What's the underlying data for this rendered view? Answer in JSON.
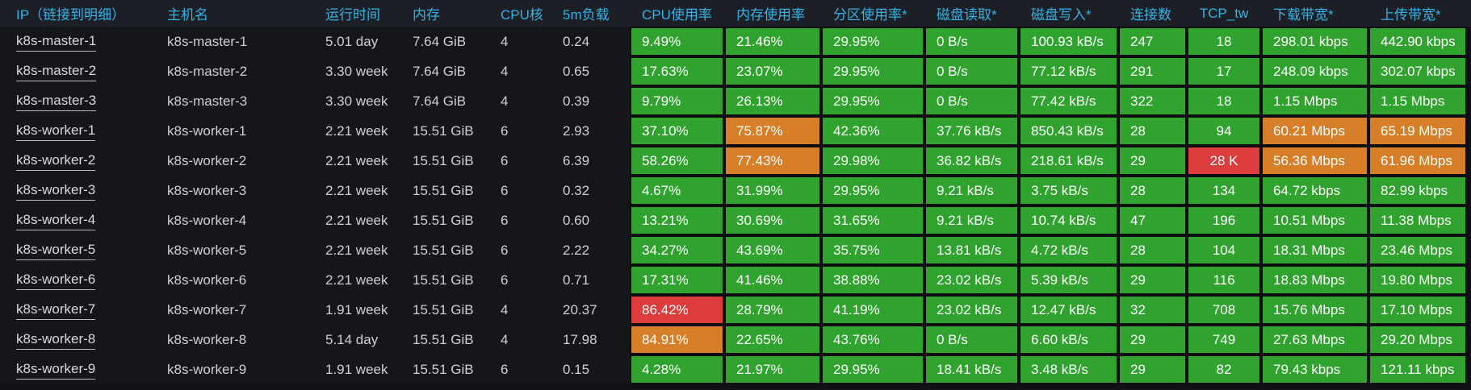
{
  "colors": {
    "green": "#30a32e",
    "orange": "#d67e28",
    "red": "#dc3c3c",
    "header_text": "#35b2e5",
    "body_text": "#cfd0d2",
    "metric_text": "#ffffff"
  },
  "table": {
    "default_level": "green",
    "columns": [
      {
        "key": "ip",
        "label": "IP（链接到明细）",
        "type": "link"
      },
      {
        "key": "hostname",
        "label": "主机名",
        "type": "text"
      },
      {
        "key": "uptime",
        "label": "运行时间",
        "type": "text"
      },
      {
        "key": "memory",
        "label": "内存",
        "type": "text"
      },
      {
        "key": "cores",
        "label": "CPU核",
        "type": "text"
      },
      {
        "key": "load",
        "label": "5m负载",
        "type": "text"
      },
      {
        "key": "cpu_pct",
        "label": "CPU使用率",
        "type": "metric"
      },
      {
        "key": "mem_pct",
        "label": "内存使用率",
        "type": "metric"
      },
      {
        "key": "part_pct",
        "label": "分区使用率*",
        "type": "metric"
      },
      {
        "key": "disk_read",
        "label": "磁盘读取*",
        "type": "metric"
      },
      {
        "key": "disk_write",
        "label": "磁盘写入*",
        "type": "metric"
      },
      {
        "key": "conns",
        "label": "连接数",
        "type": "metric"
      },
      {
        "key": "tcp_tw",
        "label": "TCP_tw",
        "type": "metric"
      },
      {
        "key": "down_bw",
        "label": "下载带宽*",
        "type": "metric"
      },
      {
        "key": "up_bw",
        "label": "上传带宽*",
        "type": "metric"
      }
    ],
    "rows": [
      {
        "cells": [
          "k8s-master-1",
          "k8s-master-1",
          "5.01 day",
          "7.64 GiB",
          "4",
          "0.24",
          "9.49%",
          "21.46%",
          "29.95%",
          "0 B/s",
          "100.93 kB/s",
          "247",
          "18",
          "298.01 kbps",
          "442.90 kbps"
        ],
        "cell_colors": {}
      },
      {
        "cells": [
          "k8s-master-2",
          "k8s-master-2",
          "3.30 week",
          "7.64 GiB",
          "4",
          "0.65",
          "17.63%",
          "23.07%",
          "29.95%",
          "0 B/s",
          "77.12 kB/s",
          "291",
          "17",
          "248.09 kbps",
          "302.07 kbps"
        ],
        "cell_colors": {}
      },
      {
        "cells": [
          "k8s-master-3",
          "k8s-master-3",
          "3.30 week",
          "7.64 GiB",
          "4",
          "0.39",
          "9.79%",
          "26.13%",
          "29.95%",
          "0 B/s",
          "77.42 kB/s",
          "322",
          "18",
          "1.15 Mbps",
          "1.15 Mbps"
        ],
        "cell_colors": {}
      },
      {
        "cells": [
          "k8s-worker-1",
          "k8s-worker-1",
          "2.21 week",
          "15.51 GiB",
          "6",
          "2.93",
          "37.10%",
          "75.87%",
          "42.36%",
          "37.76 kB/s",
          "850.43 kB/s",
          "28",
          "94",
          "60.21 Mbps",
          "65.19 Mbps"
        ],
        "cell_colors": {
          "mem_pct": "orange",
          "down_bw": "orange",
          "up_bw": "orange"
        }
      },
      {
        "cells": [
          "k8s-worker-2",
          "k8s-worker-2",
          "2.21 week",
          "15.51 GiB",
          "6",
          "6.39",
          "58.26%",
          "77.43%",
          "29.98%",
          "36.82 kB/s",
          "218.61 kB/s",
          "29",
          "28 K",
          "56.36 Mbps",
          "61.96 Mbps"
        ],
        "cell_colors": {
          "mem_pct": "orange",
          "tcp_tw": "red",
          "down_bw": "orange",
          "up_bw": "orange"
        }
      },
      {
        "cells": [
          "k8s-worker-3",
          "k8s-worker-3",
          "2.21 week",
          "15.51 GiB",
          "6",
          "0.32",
          "4.67%",
          "31.99%",
          "29.95%",
          "9.21 kB/s",
          "3.75 kB/s",
          "28",
          "134",
          "64.72 kbps",
          "82.99 kbps"
        ],
        "cell_colors": {}
      },
      {
        "cells": [
          "k8s-worker-4",
          "k8s-worker-4",
          "2.21 week",
          "15.51 GiB",
          "6",
          "0.60",
          "13.21%",
          "30.69%",
          "31.65%",
          "9.21 kB/s",
          "10.74 kB/s",
          "47",
          "196",
          "10.51 Mbps",
          "11.38 Mbps"
        ],
        "cell_colors": {}
      },
      {
        "cells": [
          "k8s-worker-5",
          "k8s-worker-5",
          "2.21 week",
          "15.51 GiB",
          "6",
          "2.22",
          "34.27%",
          "43.69%",
          "35.75%",
          "13.81 kB/s",
          "4.72 kB/s",
          "28",
          "104",
          "18.31 Mbps",
          "23.46 Mbps"
        ],
        "cell_colors": {}
      },
      {
        "cells": [
          "k8s-worker-6",
          "k8s-worker-6",
          "2.21 week",
          "15.51 GiB",
          "6",
          "0.71",
          "17.31%",
          "41.46%",
          "38.88%",
          "23.02 kB/s",
          "5.39 kB/s",
          "29",
          "116",
          "18.83 Mbps",
          "19.80 Mbps"
        ],
        "cell_colors": {}
      },
      {
        "cells": [
          "k8s-worker-7",
          "k8s-worker-7",
          "1.91 week",
          "15.51 GiB",
          "4",
          "20.37",
          "86.42%",
          "28.79%",
          "41.19%",
          "23.02 kB/s",
          "12.47 kB/s",
          "32",
          "708",
          "15.76 Mbps",
          "17.10 Mbps"
        ],
        "cell_colors": {
          "cpu_pct": "red"
        }
      },
      {
        "cells": [
          "k8s-worker-8",
          "k8s-worker-8",
          "5.14 day",
          "15.51 GiB",
          "4",
          "17.98",
          "84.91%",
          "22.65%",
          "43.76%",
          "0 B/s",
          "6.60 kB/s",
          "29",
          "749",
          "27.63 Mbps",
          "29.20 Mbps"
        ],
        "cell_colors": {
          "cpu_pct": "orange"
        }
      },
      {
        "cells": [
          "k8s-worker-9",
          "k8s-worker-9",
          "1.91 week",
          "15.51 GiB",
          "6",
          "0.15",
          "4.28%",
          "21.97%",
          "29.95%",
          "18.41 kB/s",
          "3.48 kB/s",
          "29",
          "82",
          "79.43 kbps",
          "121.11 kbps"
        ],
        "cell_colors": {}
      }
    ]
  }
}
